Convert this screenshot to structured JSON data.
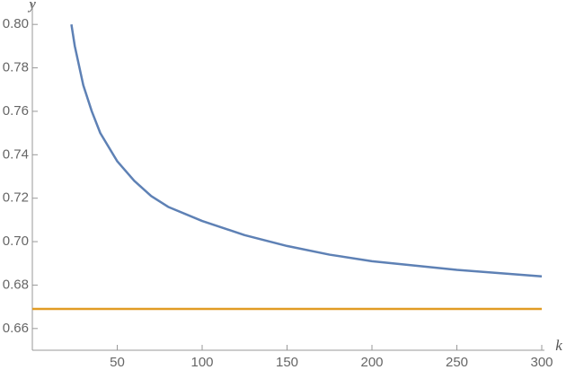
{
  "chart_data": {
    "type": "line",
    "x_label": "k",
    "y_label": "y",
    "xlim": [
      0,
      300
    ],
    "ylim": [
      0.65,
      0.81
    ],
    "xticks": [
      50,
      100,
      150,
      200,
      250,
      300
    ],
    "yticks": [
      0.66,
      0.68,
      {
        "value": 0.7,
        "label": "0.70"
      },
      0.72,
      0.74,
      0.76,
      0.78,
      {
        "value": 0.8,
        "label": "0.80"
      }
    ],
    "series": [
      {
        "color": "#5e81b5",
        "x": [
          23,
          25,
          30,
          35,
          40,
          50,
          60,
          70,
          80,
          100,
          125,
          150,
          175,
          200,
          250,
          300
        ],
        "values": [
          0.8,
          0.79,
          0.772,
          0.76,
          0.75,
          0.737,
          0.728,
          0.721,
          0.716,
          0.7095,
          0.703,
          0.698,
          0.694,
          0.691,
          0.687,
          0.684
        ]
      },
      {
        "color": "#e19c24",
        "x": [
          0,
          300
        ],
        "values": [
          0.669,
          0.669
        ]
      }
    ]
  }
}
